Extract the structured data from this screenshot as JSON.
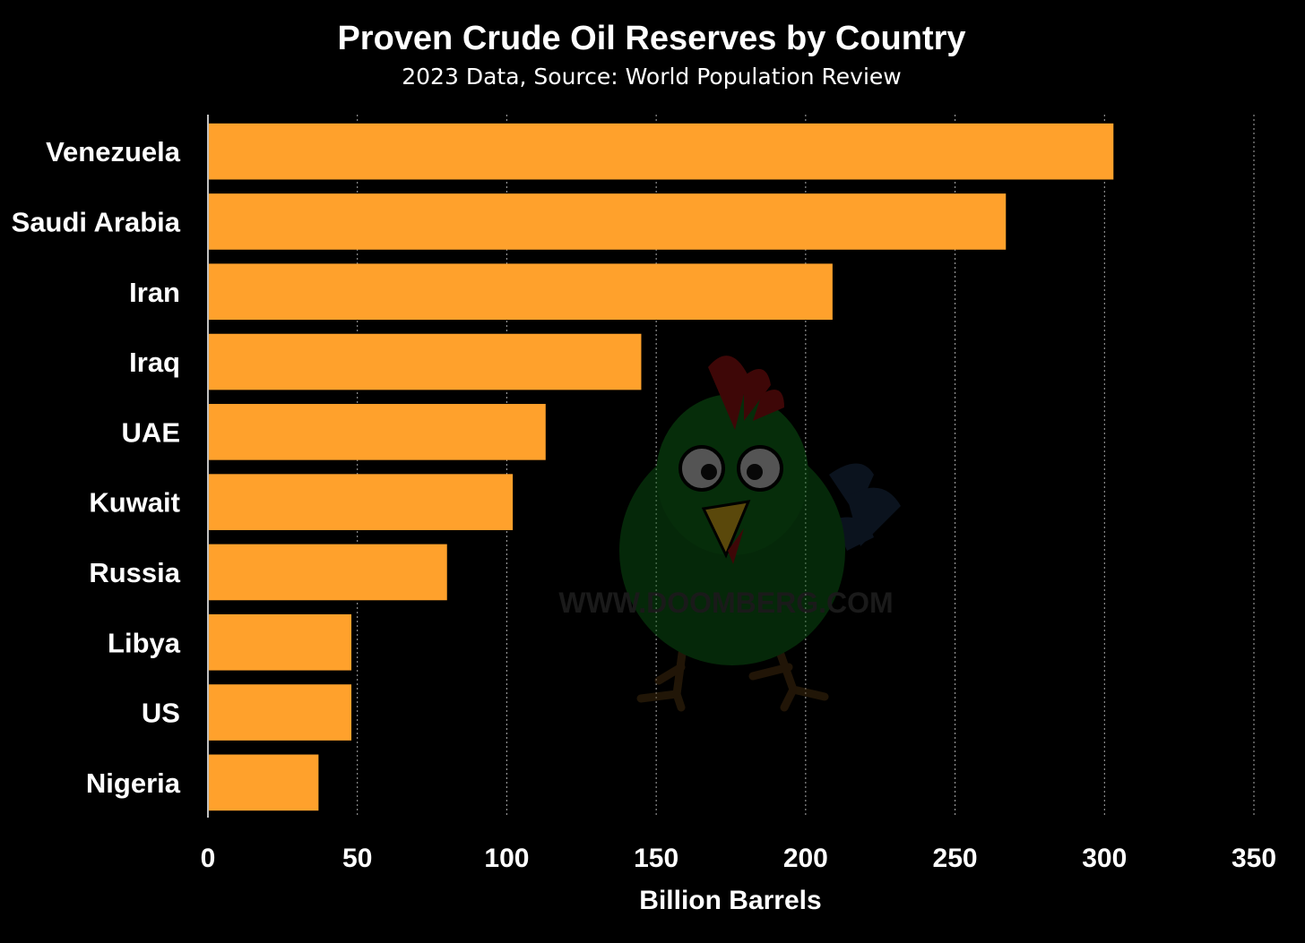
{
  "chart_data": {
    "type": "bar",
    "orientation": "horizontal",
    "title": "Proven Crude Oil Reserves by Country",
    "subtitle": "2023 Data, Source: World Population Review",
    "xlabel": "Billion Barrels",
    "ylabel": "",
    "categories": [
      "Venezuela",
      "Saudi Arabia",
      "Iran",
      "Iraq",
      "UAE",
      "Kuwait",
      "Russia",
      "Libya",
      "US",
      "Nigeria"
    ],
    "values": [
      303,
      267,
      209,
      145,
      113,
      102,
      80,
      48,
      48,
      37
    ],
    "xlim": [
      0,
      350
    ],
    "xticks": [
      "0",
      "50",
      "100",
      "150",
      "200",
      "250",
      "300",
      "350"
    ],
    "grid": "vertical dotted",
    "bar_color": "#FFA12C",
    "background_color": "#000000",
    "watermark": "WWW.DOOMBERG.COM"
  }
}
